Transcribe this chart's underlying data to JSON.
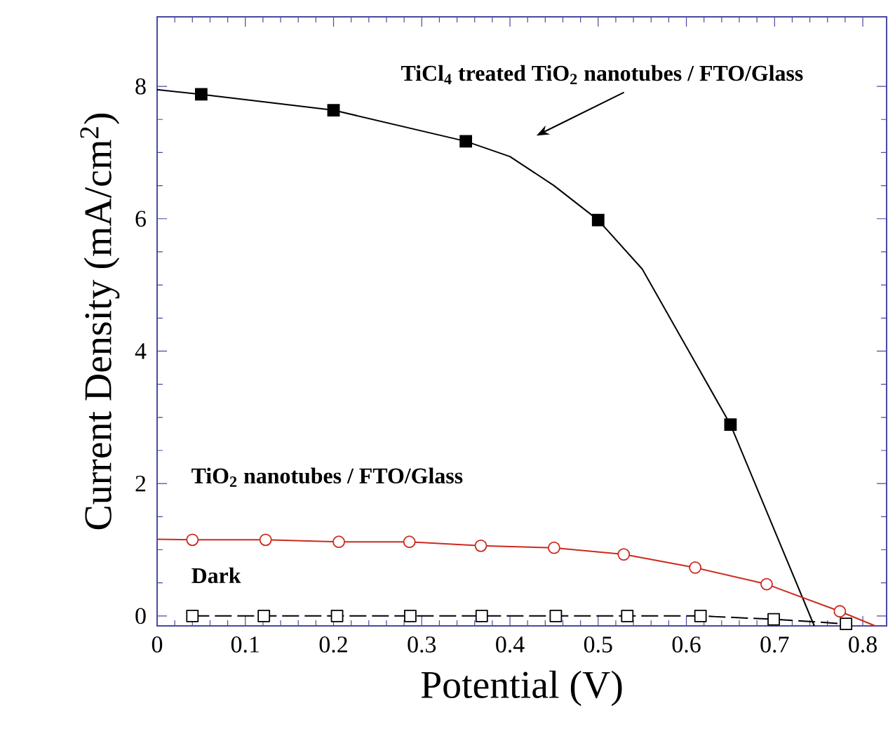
{
  "chart_data": {
    "type": "line",
    "xlabel": "Potential (V)",
    "ylabel": "Current Density (mA/cm$^{2}$)",
    "xlim": [
      0,
      0.827
    ],
    "ylim": [
      -0.15,
      9.05
    ],
    "xticks": [
      0,
      0.1,
      0.2,
      0.3,
      0.4,
      0.5,
      0.6,
      0.7,
      0.8
    ],
    "yticks": [
      0,
      2,
      4,
      6,
      8
    ],
    "series": [
      {
        "color": "#000000",
        "marker": "none",
        "line_style": "solid",
        "x": [
          0,
          0.05,
          0.2,
          0.35,
          0.4,
          0.45,
          0.5,
          0.55,
          0.65,
          0.745
        ],
        "values": [
          7.95,
          7.88,
          7.64,
          7.17,
          6.94,
          6.5,
          5.98,
          5.24,
          2.89,
          -0.15
        ]
      },
      {
        "type": "scatter",
        "color": "#000000",
        "marker": "square",
        "x": [
          0.05,
          0.2,
          0.35,
          0.5,
          0.65
        ],
        "values": [
          7.88,
          7.64,
          7.17,
          5.98,
          2.89
        ]
      },
      {
        "color": "#cc2a1e",
        "marker": "none",
        "line_style": "solid",
        "x": [
          0,
          0.04,
          0.123,
          0.206,
          0.286,
          0.367,
          0.45,
          0.529,
          0.61,
          0.691,
          0.774,
          0.814
        ],
        "values": [
          1.16,
          1.15,
          1.15,
          1.12,
          1.12,
          1.06,
          1.03,
          0.93,
          0.73,
          0.48,
          0.07,
          -0.15
        ]
      },
      {
        "type": "scatter",
        "color": "#cc2a1e",
        "marker": "circle",
        "x": [
          0.04,
          0.123,
          0.206,
          0.286,
          0.367,
          0.45,
          0.529,
          0.61,
          0.691,
          0.774
        ],
        "values": [
          1.15,
          1.15,
          1.12,
          1.12,
          1.06,
          1.03,
          0.93,
          0.73,
          0.48,
          0.07
        ]
      },
      {
        "color": "#000000",
        "marker": "square",
        "line_style": "dashed",
        "x": [
          0.04,
          0.121,
          0.204,
          0.287,
          0.368,
          0.452,
          0.533,
          0.616,
          0.699,
          0.781
        ],
        "values": [
          0,
          0,
          0,
          0,
          0,
          0,
          0,
          0,
          -0.05,
          -0.12
        ]
      }
    ],
    "annotations": [
      "TiCl$_{4}$ treated TiO$_{2}$ nanotubes / FTO/Glass",
      "TiO$_{2}$ nanotubes / FTO/Glass",
      "Dark"
    ]
  }
}
